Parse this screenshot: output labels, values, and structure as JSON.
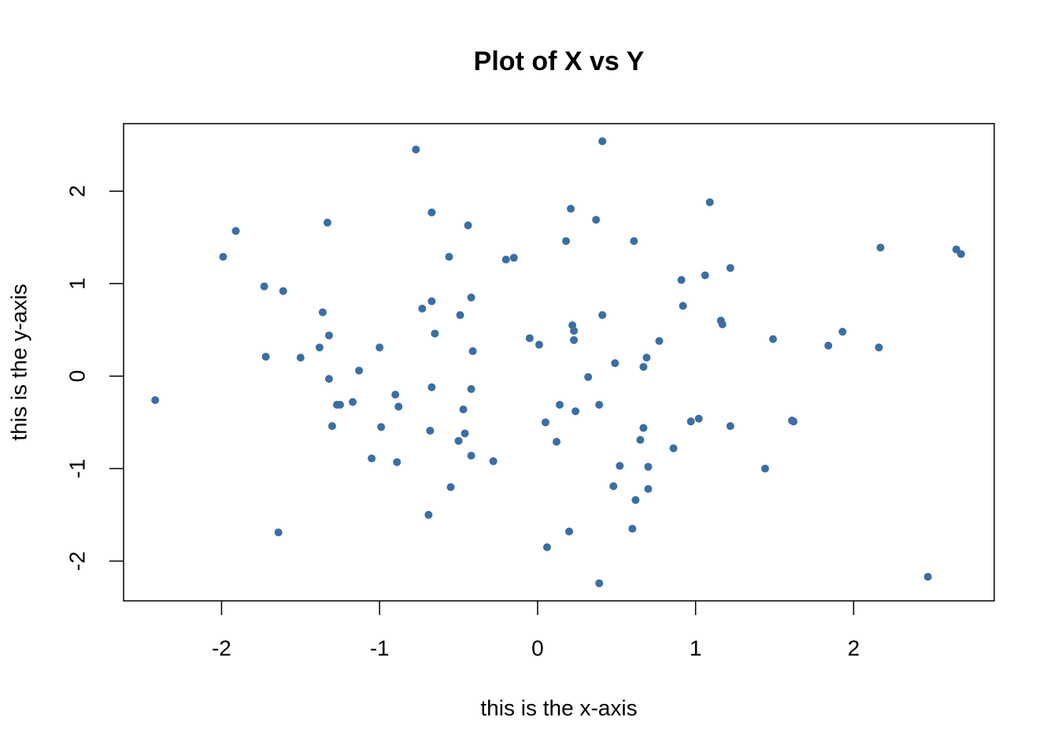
{
  "chart_data": {
    "type": "scatter",
    "title": "Plot of X vs Y",
    "x_label": "this is the x-axis",
    "y_label": "this is the y-axis",
    "color": "#3a6ea5",
    "xlim": [
      -2.62,
      2.89
    ],
    "ylim": [
      -2.43,
      2.73
    ],
    "xticks": [
      -2,
      -1,
      0,
      1,
      2
    ],
    "yticks": [
      -2,
      -1,
      0,
      1,
      2
    ],
    "x": [
      -2.42,
      -1.99,
      -1.91,
      -1.73,
      -1.72,
      -1.61,
      -1.64,
      -1.5,
      -1.36,
      -1.38,
      -1.33,
      -1.32,
      -1.32,
      -1.3,
      -1.27,
      -1.25,
      -1.17,
      -1.13,
      -1.05,
      -1.0,
      -0.99,
      -0.9,
      -0.88,
      -0.89,
      -0.77,
      -0.73,
      -0.69,
      -0.68,
      -0.67,
      -0.67,
      -0.67,
      -0.65,
      -0.56,
      -0.55,
      -0.5,
      -0.49,
      -0.47,
      -0.46,
      -0.44,
      -0.42,
      -0.42,
      -0.42,
      -0.41,
      -0.28,
      -0.2,
      -0.15,
      -0.05,
      0.01,
      0.05,
      0.06,
      0.12,
      0.14,
      0.18,
      0.2,
      0.21,
      0.22,
      0.23,
      0.23,
      0.24,
      0.32,
      0.37,
      0.39,
      0.39,
      0.41,
      0.41,
      0.48,
      0.49,
      0.52,
      0.6,
      0.61,
      0.62,
      0.65,
      0.67,
      0.67,
      0.69,
      0.7,
      0.7,
      0.77,
      0.86,
      0.91,
      0.92,
      0.97,
      1.02,
      1.06,
      1.09,
      1.16,
      1.17,
      1.22,
      1.22,
      1.44,
      1.49,
      1.61,
      1.62,
      1.84,
      1.93,
      2.16,
      2.17,
      2.47,
      2.65,
      2.68
    ],
    "values": [
      -0.26,
      1.29,
      1.57,
      0.97,
      0.21,
      0.92,
      -1.69,
      0.2,
      0.69,
      0.31,
      1.66,
      0.44,
      -0.03,
      -0.54,
      -0.31,
      -0.31,
      -0.28,
      0.06,
      -0.89,
      0.31,
      -0.55,
      -0.2,
      -0.33,
      -0.93,
      2.45,
      0.73,
      -1.5,
      -0.59,
      1.77,
      -0.12,
      0.81,
      0.46,
      1.29,
      -1.2,
      -0.7,
      0.66,
      -0.36,
      -0.62,
      1.63,
      -0.14,
      -0.86,
      0.85,
      0.27,
      -0.92,
      1.26,
      1.28,
      0.41,
      0.34,
      -0.5,
      -1.85,
      -0.71,
      -0.31,
      1.46,
      -1.68,
      1.81,
      0.55,
      0.49,
      0.39,
      -0.38,
      -0.01,
      1.69,
      -0.31,
      -2.24,
      2.54,
      0.66,
      -1.19,
      0.14,
      -0.97,
      -1.65,
      1.46,
      -1.34,
      -0.69,
      0.1,
      -0.56,
      0.2,
      -1.22,
      -0.98,
      0.38,
      -0.78,
      1.04,
      0.76,
      -0.49,
      -0.46,
      1.09,
      1.88,
      0.6,
      0.56,
      1.17,
      -0.54,
      -1.0,
      0.4,
      -0.48,
      -0.49,
      0.33,
      0.48,
      0.31,
      1.39,
      -2.17,
      1.37,
      1.32
    ]
  }
}
